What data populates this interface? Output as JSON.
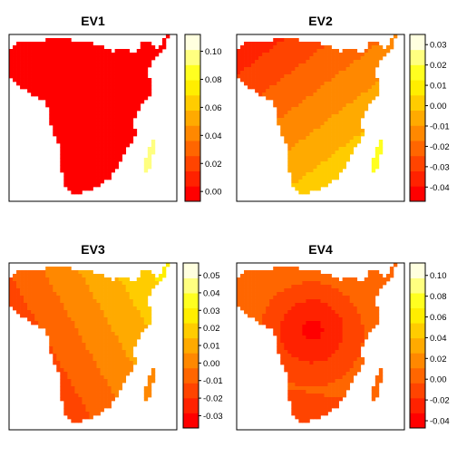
{
  "chart_data": [
    {
      "type": "heatmap",
      "title": "EV1",
      "colorbar": {
        "ticks": [
          "0.00",
          "0.02",
          "0.04",
          "0.06",
          "0.08",
          "0.10"
        ],
        "tick_values": [
          0.0,
          0.02,
          0.04,
          0.06,
          0.08,
          0.1
        ],
        "range": [
          -0.007,
          0.112
        ]
      },
      "field": {
        "west": 0.0,
        "east": 0.0,
        "north": 0.0,
        "south": 0.0,
        "mad": 0.1
      }
    },
    {
      "type": "heatmap",
      "title": "EV2",
      "colorbar": {
        "ticks": [
          "0.03",
          "0.02",
          "0.01",
          "0.00",
          "-0.01",
          "-0.02",
          "-0.03",
          "-0.04"
        ],
        "tick_values": [
          0.03,
          0.02,
          0.01,
          0.0,
          -0.01,
          -0.02,
          -0.03,
          -0.04
        ],
        "range": [
          -0.047,
          0.035
        ]
      },
      "field": {
        "west": -0.045,
        "east": 0.005,
        "north": -0.035,
        "south": 0.03,
        "mad": 0.02
      }
    },
    {
      "type": "heatmap",
      "title": "EV3",
      "colorbar": {
        "ticks": [
          "0.05",
          "0.04",
          "0.03",
          "0.02",
          "0.01",
          "0.00",
          "-0.01",
          "-0.02",
          "-0.03"
        ],
        "tick_values": [
          0.05,
          0.04,
          0.03,
          0.02,
          0.01,
          0.0,
          -0.01,
          -0.02,
          -0.03
        ],
        "range": [
          -0.037,
          0.057
        ]
      },
      "field": {
        "west": -0.035,
        "east": 0.045,
        "north": 0.015,
        "south": -0.03,
        "mad": 0.005
      }
    },
    {
      "type": "heatmap",
      "title": "EV4",
      "colorbar": {
        "ticks": [
          "0.10",
          "0.08",
          "0.06",
          "0.04",
          "0.02",
          "0.00",
          "-0.02",
          "-0.04"
        ],
        "tick_values": [
          0.1,
          0.08,
          0.06,
          0.04,
          0.02,
          0.0,
          -0.02,
          -0.04
        ],
        "range": [
          -0.047,
          0.112
        ]
      },
      "field": {
        "west": 0.015,
        "east": 0.02,
        "north": -0.005,
        "south": -0.03,
        "mad": 0.0,
        "center": -0.04
      }
    }
  ],
  "palette": [
    "#FF0000",
    "#FF2200",
    "#FF4400",
    "#FF6600",
    "#FF8800",
    "#FFAA00",
    "#FFCC00",
    "#FFEE00",
    "#FFFF20",
    "#FFFF80",
    "#FFFFDF"
  ]
}
